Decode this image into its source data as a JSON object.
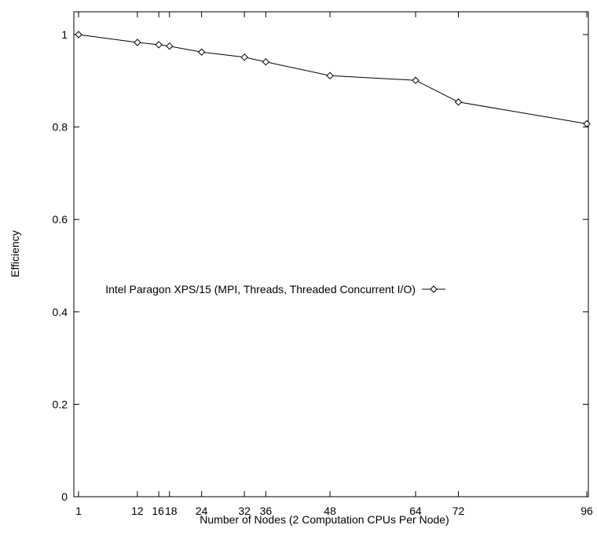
{
  "chart_data": {
    "type": "line",
    "title": "",
    "xlabel": "Number of Nodes (2 Computation CPUs Per Node)",
    "ylabel": "Efficiency",
    "xlim": [
      0,
      96
    ],
    "ylim": [
      0,
      1.05
    ],
    "x_ticks": [
      1,
      12,
      16,
      18,
      24,
      32,
      36,
      48,
      64,
      72,
      96
    ],
    "x_tick_labels": [
      "1",
      "12",
      "16",
      "18",
      "24",
      "32",
      "36",
      "48",
      "64",
      "72",
      "96"
    ],
    "y_ticks": [
      0,
      0.2,
      0.4,
      0.6,
      0.8,
      1
    ],
    "y_tick_labels": [
      "0",
      "0.2",
      "0.4",
      "0.6",
      "0.8",
      "1"
    ],
    "grid": false,
    "legend_position": "center-left",
    "series": [
      {
        "name": "Intel Paragon XPS/15 (MPI, Threads, Threaded Concurrent I/O)",
        "marker": "diamond",
        "color": "#000000",
        "x": [
          1,
          12,
          16,
          18,
          24,
          32,
          36,
          48,
          64,
          72,
          96
        ],
        "y": [
          1.0,
          0.983,
          0.978,
          0.975,
          0.962,
          0.951,
          0.941,
          0.911,
          0.901,
          0.854,
          0.807
        ]
      }
    ]
  }
}
